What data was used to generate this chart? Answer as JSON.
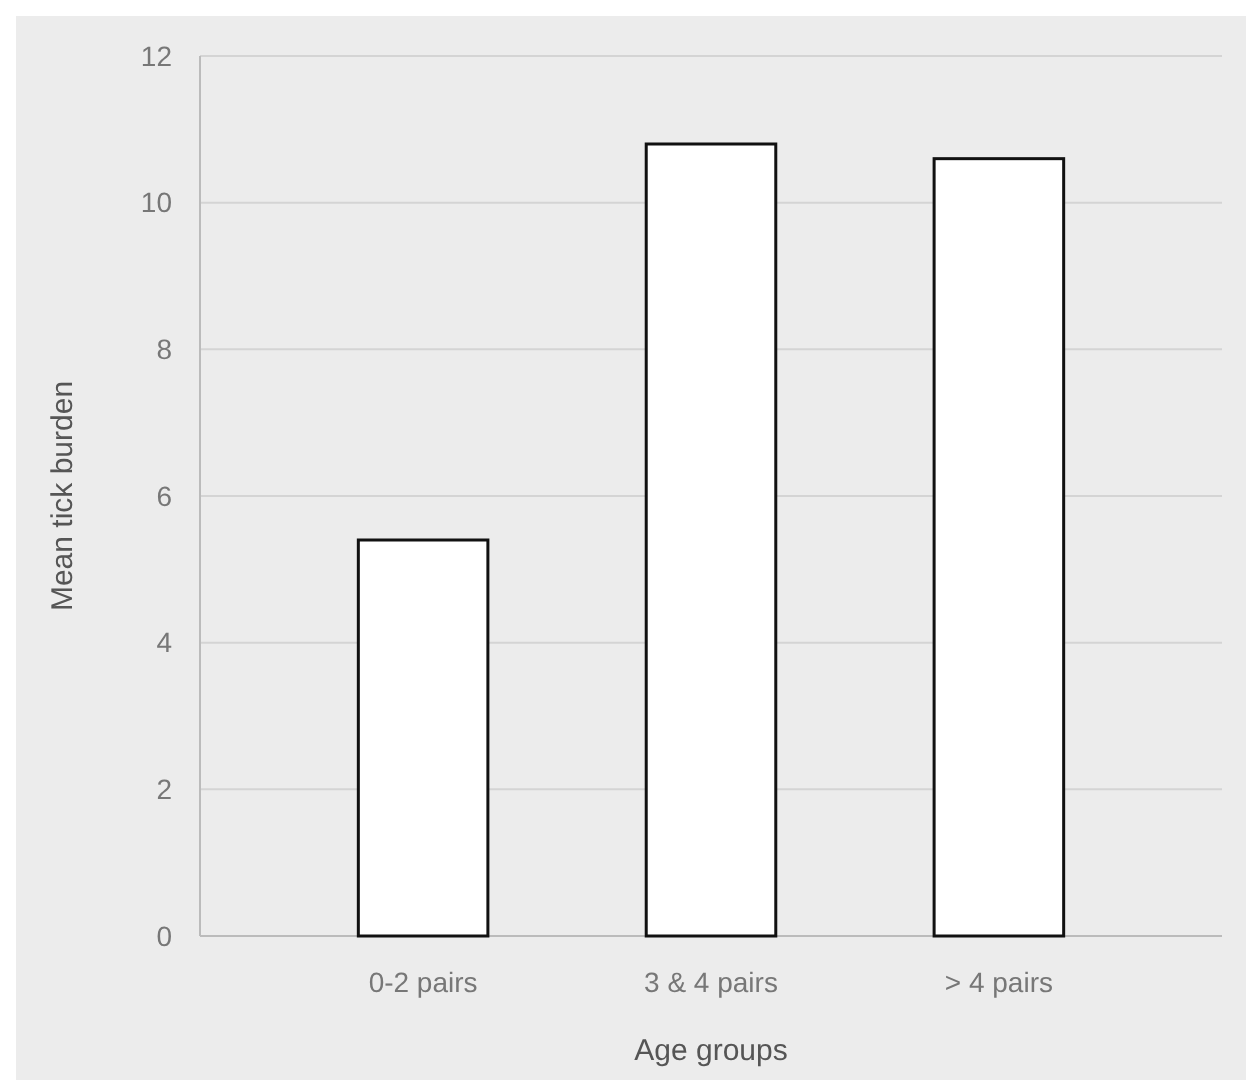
{
  "chart_data": {
    "type": "bar",
    "xlabel": "Age groups",
    "ylabel": "Mean tick burden",
    "categories": [
      "0-2  pairs",
      "3 & 4 pairs",
      "> 4 pairs"
    ],
    "values": [
      5.4,
      10.8,
      10.6
    ],
    "color": "#ffffff",
    "ylim": [
      0,
      12
    ],
    "yticks": [
      0,
      2,
      4,
      6,
      8,
      10,
      12
    ],
    "grid": "y"
  }
}
